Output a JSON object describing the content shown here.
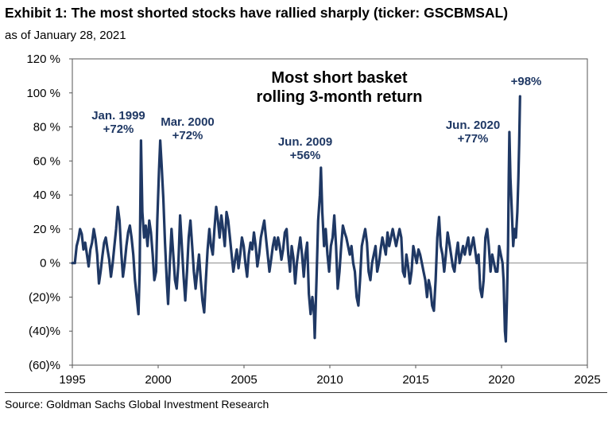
{
  "header": {
    "title": "Exhibit 1: The most shorted stocks have rallied sharply (ticker: GSCBMSAL)",
    "subtitle": "as of January 28, 2021"
  },
  "footer": {
    "source": "Source: Goldman Sachs Global Investment Research"
  },
  "chart_data": {
    "type": "line",
    "title": [
      "Most short basket",
      "rolling 3-month return"
    ],
    "xlabel": "",
    "ylabel": "",
    "xlim": [
      1995,
      2025
    ],
    "ylim": [
      -60,
      120
    ],
    "x_ticks": [
      1995,
      2000,
      2005,
      2010,
      2015,
      2020,
      2025
    ],
    "y_ticks": [
      {
        "value": 120,
        "label": "120 %"
      },
      {
        "value": 100,
        "label": "100 %"
      },
      {
        "value": 80,
        "label": "80 %"
      },
      {
        "value": 60,
        "label": "60 %"
      },
      {
        "value": 40,
        "label": "40 %"
      },
      {
        "value": 20,
        "label": "20 %"
      },
      {
        "value": 0,
        "label": "0 %"
      },
      {
        "value": -20,
        "label": "(20)%"
      },
      {
        "value": -40,
        "label": "(40)%"
      },
      {
        "value": -60,
        "label": "(60)%"
      }
    ],
    "grid": false,
    "zero_line": true,
    "line_color": "#1f3864",
    "annotations": [
      {
        "lines": [
          "Jan. 1999",
          "+72%"
        ],
        "x": 1999.0,
        "y": 72
      },
      {
        "lines": [
          "Mar. 2000",
          "+72%"
        ],
        "x": 2000.2,
        "y": 72
      },
      {
        "lines": [
          "Jun. 2009",
          "+56%"
        ],
        "x": 2009.45,
        "y": 56
      },
      {
        "lines": [
          "Jun. 2020",
          "+77%"
        ],
        "x": 2020.45,
        "y": 77
      },
      {
        "lines": [
          "+98%"
        ],
        "x": 2021.08,
        "y": 98
      }
    ],
    "series": [
      {
        "values": [
          [
            1995.0,
            0
          ],
          [
            1995.15,
            0
          ],
          [
            1995.25,
            10
          ],
          [
            1995.35,
            14
          ],
          [
            1995.45,
            20
          ],
          [
            1995.55,
            17
          ],
          [
            1995.65,
            8
          ],
          [
            1995.75,
            12
          ],
          [
            1995.85,
            5
          ],
          [
            1995.95,
            -2
          ],
          [
            1996.05,
            8
          ],
          [
            1996.15,
            12
          ],
          [
            1996.25,
            20
          ],
          [
            1996.35,
            14
          ],
          [
            1996.45,
            5
          ],
          [
            1996.55,
            -12
          ],
          [
            1996.65,
            -5
          ],
          [
            1996.75,
            4
          ],
          [
            1996.85,
            12
          ],
          [
            1996.95,
            15
          ],
          [
            1997.05,
            8
          ],
          [
            1997.15,
            2
          ],
          [
            1997.25,
            -8
          ],
          [
            1997.35,
            0
          ],
          [
            1997.45,
            10
          ],
          [
            1997.55,
            20
          ],
          [
            1997.65,
            33
          ],
          [
            1997.75,
            25
          ],
          [
            1997.85,
            6
          ],
          [
            1997.95,
            -8
          ],
          [
            1998.05,
            0
          ],
          [
            1998.15,
            10
          ],
          [
            1998.25,
            18
          ],
          [
            1998.35,
            22
          ],
          [
            1998.45,
            15
          ],
          [
            1998.55,
            5
          ],
          [
            1998.65,
            -10
          ],
          [
            1998.75,
            -20
          ],
          [
            1998.85,
            -30
          ],
          [
            1998.92,
            -5
          ],
          [
            1999.0,
            72
          ],
          [
            1999.08,
            30
          ],
          [
            1999.18,
            15
          ],
          [
            1999.28,
            22
          ],
          [
            1999.38,
            10
          ],
          [
            1999.48,
            25
          ],
          [
            1999.58,
            18
          ],
          [
            1999.68,
            5
          ],
          [
            1999.78,
            -10
          ],
          [
            1999.88,
            -5
          ],
          [
            1999.95,
            25
          ],
          [
            2000.05,
            55
          ],
          [
            2000.12,
            72
          ],
          [
            2000.2,
            58
          ],
          [
            2000.3,
            38
          ],
          [
            2000.4,
            12
          ],
          [
            2000.5,
            -10
          ],
          [
            2000.58,
            -24
          ],
          [
            2000.68,
            0
          ],
          [
            2000.78,
            20
          ],
          [
            2000.88,
            5
          ],
          [
            2000.98,
            -10
          ],
          [
            2001.08,
            -15
          ],
          [
            2001.18,
            0
          ],
          [
            2001.28,
            28
          ],
          [
            2001.38,
            10
          ],
          [
            2001.48,
            -8
          ],
          [
            2001.58,
            -22
          ],
          [
            2001.68,
            -5
          ],
          [
            2001.78,
            15
          ],
          [
            2001.88,
            25
          ],
          [
            2001.98,
            10
          ],
          [
            2002.08,
            -5
          ],
          [
            2002.18,
            -15
          ],
          [
            2002.28,
            -5
          ],
          [
            2002.38,
            5
          ],
          [
            2002.48,
            -10
          ],
          [
            2002.58,
            -22
          ],
          [
            2002.68,
            -29
          ],
          [
            2002.78,
            -10
          ],
          [
            2002.88,
            8
          ],
          [
            2002.98,
            20
          ],
          [
            2003.08,
            10
          ],
          [
            2003.18,
            5
          ],
          [
            2003.28,
            20
          ],
          [
            2003.38,
            33
          ],
          [
            2003.48,
            25
          ],
          [
            2003.58,
            15
          ],
          [
            2003.68,
            28
          ],
          [
            2003.78,
            20
          ],
          [
            2003.88,
            10
          ],
          [
            2003.98,
            30
          ],
          [
            2004.08,
            25
          ],
          [
            2004.18,
            15
          ],
          [
            2004.28,
            5
          ],
          [
            2004.38,
            -5
          ],
          [
            2004.48,
            2
          ],
          [
            2004.58,
            8
          ],
          [
            2004.68,
            -3
          ],
          [
            2004.78,
            5
          ],
          [
            2004.88,
            15
          ],
          [
            2004.98,
            10
          ],
          [
            2005.08,
            0
          ],
          [
            2005.18,
            -8
          ],
          [
            2005.28,
            5
          ],
          [
            2005.38,
            12
          ],
          [
            2005.48,
            8
          ],
          [
            2005.58,
            18
          ],
          [
            2005.68,
            10
          ],
          [
            2005.78,
            -2
          ],
          [
            2005.88,
            5
          ],
          [
            2005.98,
            15
          ],
          [
            2006.08,
            20
          ],
          [
            2006.18,
            25
          ],
          [
            2006.28,
            15
          ],
          [
            2006.38,
            5
          ],
          [
            2006.48,
            -5
          ],
          [
            2006.58,
            2
          ],
          [
            2006.68,
            10
          ],
          [
            2006.78,
            15
          ],
          [
            2006.88,
            8
          ],
          [
            2006.98,
            15
          ],
          [
            2007.08,
            10
          ],
          [
            2007.18,
            2
          ],
          [
            2007.28,
            8
          ],
          [
            2007.38,
            18
          ],
          [
            2007.48,
            20
          ],
          [
            2007.58,
            5
          ],
          [
            2007.68,
            -5
          ],
          [
            2007.78,
            10
          ],
          [
            2007.88,
            3
          ],
          [
            2007.98,
            -12
          ],
          [
            2008.08,
            0
          ],
          [
            2008.18,
            8
          ],
          [
            2008.28,
            15
          ],
          [
            2008.38,
            5
          ],
          [
            2008.48,
            -8
          ],
          [
            2008.58,
            5
          ],
          [
            2008.68,
            12
          ],
          [
            2008.78,
            -18
          ],
          [
            2008.88,
            -30
          ],
          [
            2008.98,
            -20
          ],
          [
            2009.08,
            -30
          ],
          [
            2009.12,
            -44
          ],
          [
            2009.22,
            -10
          ],
          [
            2009.32,
            25
          ],
          [
            2009.42,
            40
          ],
          [
            2009.48,
            56
          ],
          [
            2009.56,
            30
          ],
          [
            2009.66,
            10
          ],
          [
            2009.76,
            20
          ],
          [
            2009.86,
            5
          ],
          [
            2009.96,
            -5
          ],
          [
            2010.06,
            10
          ],
          [
            2010.16,
            15
          ],
          [
            2010.26,
            28
          ],
          [
            2010.36,
            10
          ],
          [
            2010.46,
            -15
          ],
          [
            2010.56,
            -5
          ],
          [
            2010.66,
            10
          ],
          [
            2010.76,
            22
          ],
          [
            2010.86,
            18
          ],
          [
            2010.96,
            15
          ],
          [
            2011.06,
            10
          ],
          [
            2011.16,
            5
          ],
          [
            2011.26,
            10
          ],
          [
            2011.36,
            0
          ],
          [
            2011.46,
            -5
          ],
          [
            2011.56,
            -20
          ],
          [
            2011.66,
            -25
          ],
          [
            2011.76,
            -10
          ],
          [
            2011.86,
            10
          ],
          [
            2011.96,
            15
          ],
          [
            2012.06,
            20
          ],
          [
            2012.16,
            12
          ],
          [
            2012.26,
            -5
          ],
          [
            2012.36,
            -10
          ],
          [
            2012.46,
            0
          ],
          [
            2012.56,
            5
          ],
          [
            2012.66,
            10
          ],
          [
            2012.76,
            -5
          ],
          [
            2012.86,
            0
          ],
          [
            2012.96,
            8
          ],
          [
            2013.06,
            15
          ],
          [
            2013.16,
            10
          ],
          [
            2013.26,
            5
          ],
          [
            2013.36,
            18
          ],
          [
            2013.46,
            10
          ],
          [
            2013.56,
            15
          ],
          [
            2013.66,
            20
          ],
          [
            2013.76,
            15
          ],
          [
            2013.86,
            10
          ],
          [
            2013.96,
            15
          ],
          [
            2014.06,
            20
          ],
          [
            2014.16,
            15
          ],
          [
            2014.26,
            -5
          ],
          [
            2014.36,
            -8
          ],
          [
            2014.46,
            5
          ],
          [
            2014.56,
            -2
          ],
          [
            2014.66,
            -12
          ],
          [
            2014.76,
            -5
          ],
          [
            2014.86,
            10
          ],
          [
            2014.96,
            5
          ],
          [
            2015.06,
            0
          ],
          [
            2015.16,
            8
          ],
          [
            2015.26,
            5
          ],
          [
            2015.36,
            0
          ],
          [
            2015.46,
            -5
          ],
          [
            2015.56,
            -10
          ],
          [
            2015.66,
            -20
          ],
          [
            2015.76,
            -10
          ],
          [
            2015.86,
            -15
          ],
          [
            2015.96,
            -25
          ],
          [
            2016.06,
            -28
          ],
          [
            2016.16,
            -10
          ],
          [
            2016.26,
            15
          ],
          [
            2016.36,
            27
          ],
          [
            2016.46,
            10
          ],
          [
            2016.56,
            5
          ],
          [
            2016.66,
            -5
          ],
          [
            2016.76,
            5
          ],
          [
            2016.86,
            18
          ],
          [
            2016.96,
            12
          ],
          [
            2017.06,
            5
          ],
          [
            2017.16,
            -2
          ],
          [
            2017.26,
            -5
          ],
          [
            2017.36,
            5
          ],
          [
            2017.46,
            12
          ],
          [
            2017.56,
            0
          ],
          [
            2017.66,
            5
          ],
          [
            2017.76,
            10
          ],
          [
            2017.86,
            5
          ],
          [
            2017.96,
            10
          ],
          [
            2018.06,
            15
          ],
          [
            2018.16,
            5
          ],
          [
            2018.26,
            10
          ],
          [
            2018.36,
            15
          ],
          [
            2018.46,
            8
          ],
          [
            2018.56,
            0
          ],
          [
            2018.66,
            5
          ],
          [
            2018.76,
            -15
          ],
          [
            2018.86,
            -20
          ],
          [
            2018.96,
            -10
          ],
          [
            2019.06,
            15
          ],
          [
            2019.16,
            20
          ],
          [
            2019.26,
            10
          ],
          [
            2019.36,
            -5
          ],
          [
            2019.46,
            5
          ],
          [
            2019.56,
            0
          ],
          [
            2019.66,
            -5
          ],
          [
            2019.76,
            -5
          ],
          [
            2019.86,
            10
          ],
          [
            2019.96,
            5
          ],
          [
            2020.06,
            0
          ],
          [
            2020.12,
            -10
          ],
          [
            2020.2,
            -40
          ],
          [
            2020.25,
            -46
          ],
          [
            2020.32,
            -20
          ],
          [
            2020.38,
            10
          ],
          [
            2020.42,
            50
          ],
          [
            2020.46,
            77
          ],
          [
            2020.52,
            50
          ],
          [
            2020.6,
            30
          ],
          [
            2020.68,
            10
          ],
          [
            2020.76,
            20
          ],
          [
            2020.84,
            15
          ],
          [
            2020.92,
            30
          ],
          [
            2020.98,
            50
          ],
          [
            2021.03,
            70
          ],
          [
            2021.08,
            98
          ]
        ]
      }
    ]
  }
}
